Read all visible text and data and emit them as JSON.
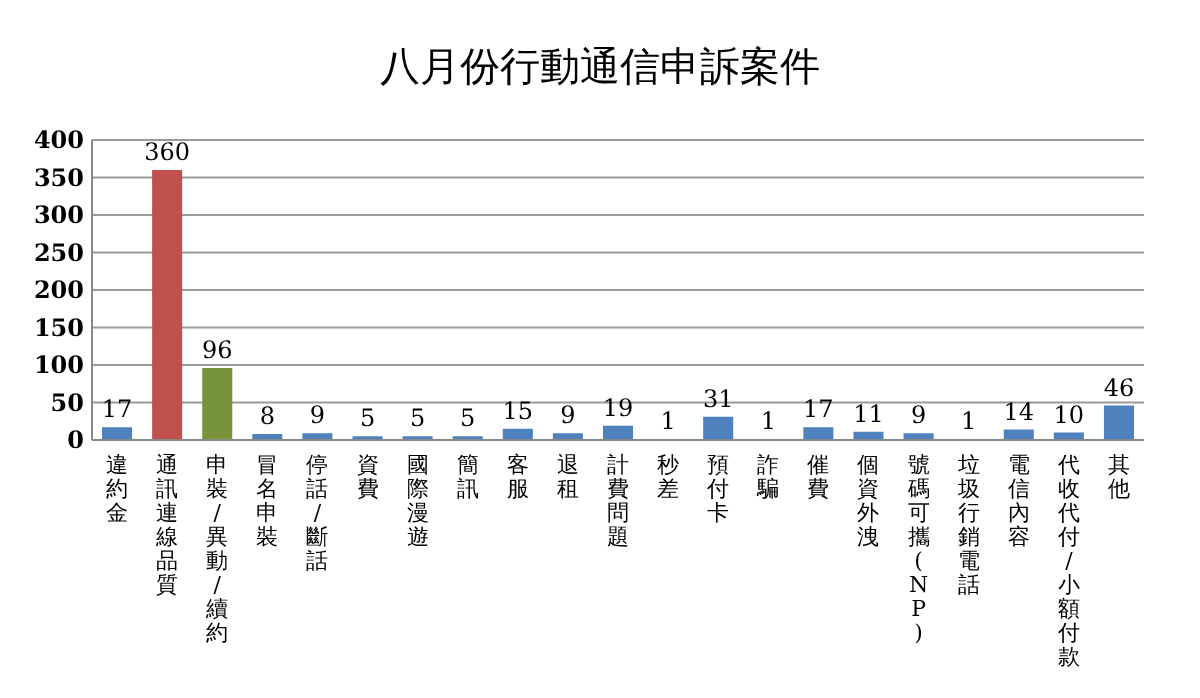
{
  "chart_data": {
    "type": "bar",
    "title": "八月份行動通信申訴案件",
    "categories": [
      "違約金",
      "通訊連線品質",
      "申裝/異動/續約",
      "冒名申裝",
      "停話/斷話",
      "資費",
      "國際漫遊",
      "簡訊",
      "客服",
      "退租",
      "計費問題",
      "秒差",
      "預付卡",
      "詐騙",
      "催費",
      "個資外洩",
      "號碼可攜(NP)",
      "垃圾行銷電話",
      "電信內容",
      "代收代付/小額付款",
      "其他"
    ],
    "values": [
      17,
      360,
      96,
      8,
      9,
      5,
      5,
      5,
      15,
      9,
      19,
      1,
      31,
      1,
      17,
      11,
      9,
      1,
      14,
      10,
      46
    ],
    "colors": [
      "#4f81bd",
      "#c0504d",
      "#77933c",
      "#4f81bd",
      "#4f81bd",
      "#4f81bd",
      "#4f81bd",
      "#4f81bd",
      "#4f81bd",
      "#4f81bd",
      "#4f81bd",
      "#4f81bd",
      "#4f81bd",
      "#4f81bd",
      "#4f81bd",
      "#4f81bd",
      "#4f81bd",
      "#4f81bd",
      "#4f81bd",
      "#4f81bd",
      "#4f81bd"
    ],
    "ylim": [
      0,
      400
    ],
    "yticks": [
      0,
      50,
      100,
      150,
      200,
      250,
      300,
      350,
      400
    ],
    "grid": "y",
    "data_labels": true
  }
}
